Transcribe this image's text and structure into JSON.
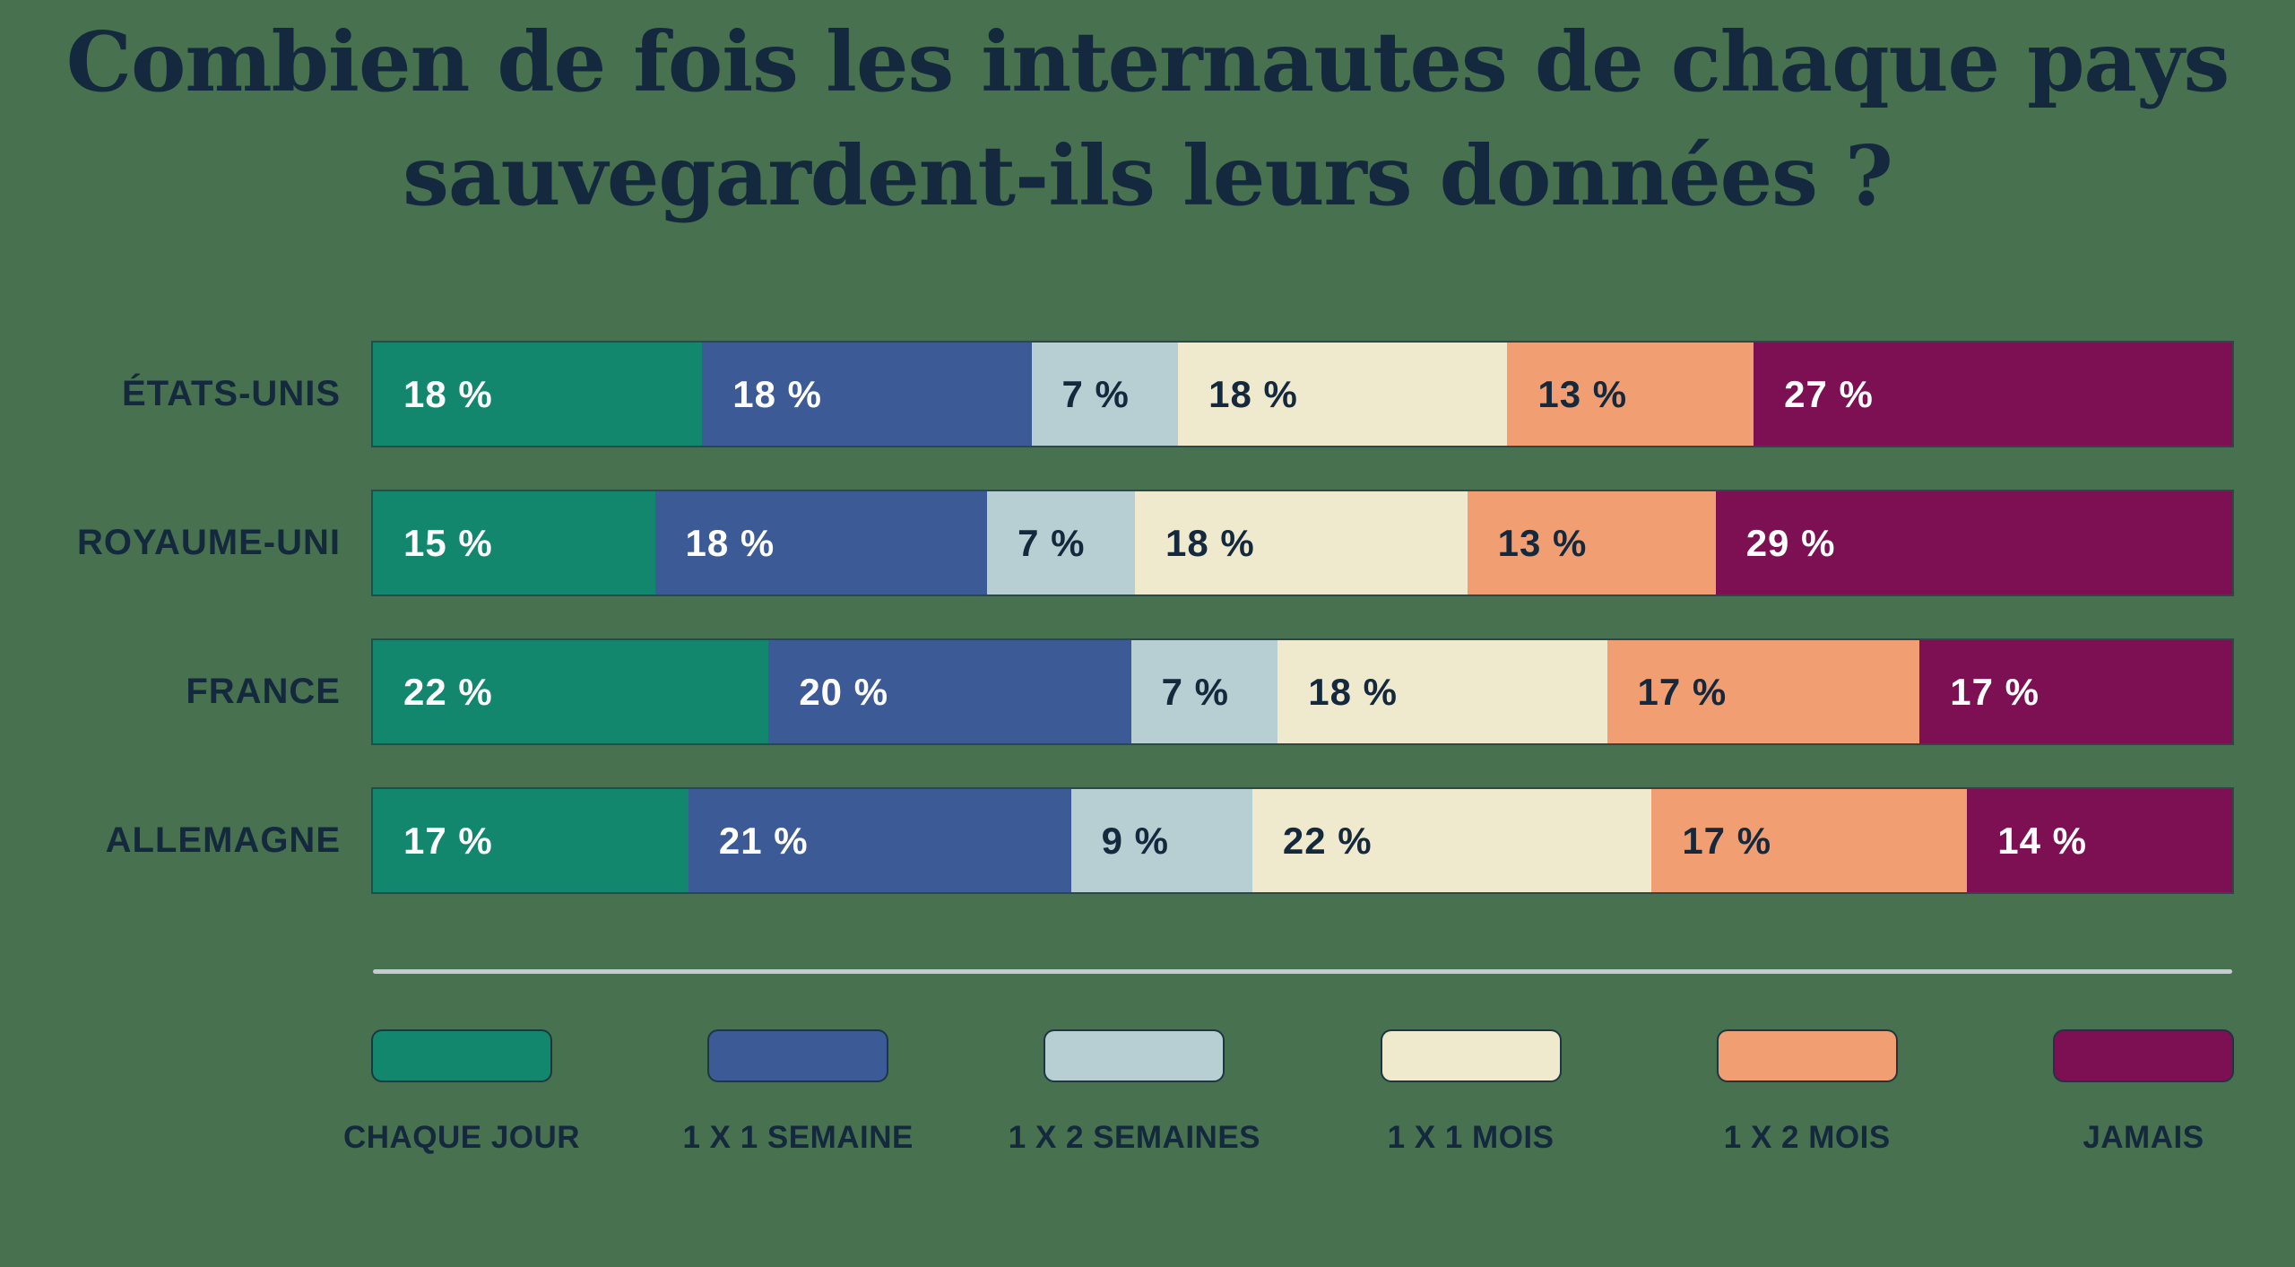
{
  "title": "Combien de fois les internautes de chaque pays sauvegardent-ils leurs données ?",
  "colors": {
    "background": "#47714F",
    "text_dark": "#14293D",
    "text_light": "#FFFFFF",
    "separator": "#C5CBD1"
  },
  "chart_data": {
    "type": "bar",
    "stacked": true,
    "orientation": "horizontal",
    "title": "Combien de fois les internautes de chaque pays sauvegardent-ils leurs données ?",
    "categories": [
      "ÉTATS-UNIS",
      "ROYAUME-UNI",
      "FRANCE",
      "ALLEMAGNE"
    ],
    "series": [
      {
        "name": "CHAQUE JOUR",
        "color": "#12876E",
        "values": [
          18,
          15,
          22,
          17
        ]
      },
      {
        "name": "1 X 1 SEMAINE",
        "color": "#3C5B96",
        "values": [
          18,
          18,
          20,
          21
        ]
      },
      {
        "name": "1 X 2 SEMAINES",
        "color": "#B7CED3",
        "values": [
          7,
          7,
          7,
          9
        ]
      },
      {
        "name": "1 X 1 MOIS",
        "color": "#EFE9CE",
        "values": [
          18,
          18,
          18,
          22
        ]
      },
      {
        "name": "1 X 2 MOIS",
        "color": "#F29E73",
        "values": [
          13,
          13,
          17,
          17
        ]
      },
      {
        "name": "JAMAIS",
        "color": "#7C1053",
        "values": [
          27,
          29,
          17,
          14
        ]
      }
    ],
    "value_suffix": " %",
    "legend_position": "bottom",
    "grid": false
  }
}
